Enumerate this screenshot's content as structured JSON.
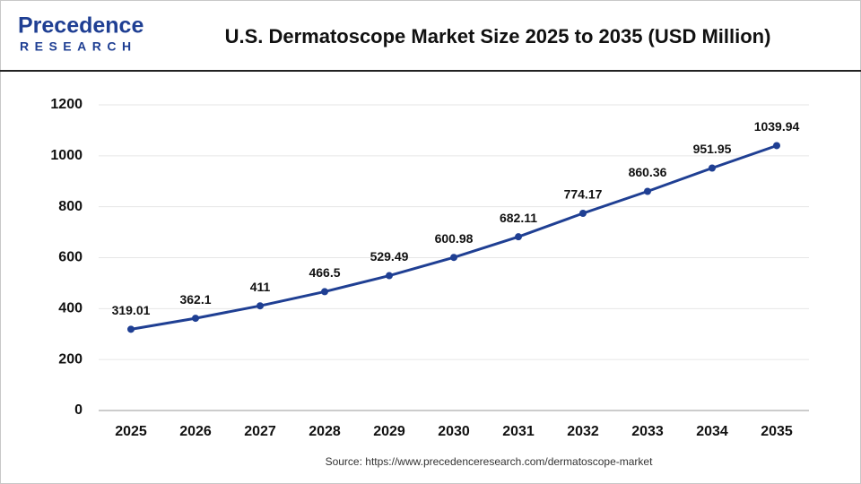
{
  "brand": {
    "name": "Precedence",
    "tagline": "RESEARCH"
  },
  "chart_data": {
    "type": "line",
    "title": "U.S. Dermatoscope Market Size 2025 to 2035  (USD Million)",
    "source": "Source: https://www.precedenceresearch.com/dermatoscope-market",
    "categories": [
      "2025",
      "2026",
      "2027",
      "2028",
      "2029",
      "2030",
      "2031",
      "2032",
      "2033",
      "2034",
      "2035"
    ],
    "series": [
      {
        "name": "U.S. Dermatoscope Market Size",
        "color": "#1f3f93",
        "values": [
          319.01,
          362.1,
          411,
          466.5,
          529.49,
          600.98,
          682.11,
          774.17,
          860.36,
          951.95,
          1039.94
        ]
      }
    ],
    "ylim": [
      0,
      1200
    ],
    "yticks": [
      0,
      200,
      400,
      600,
      800,
      1000,
      1200
    ],
    "grid": true
  }
}
